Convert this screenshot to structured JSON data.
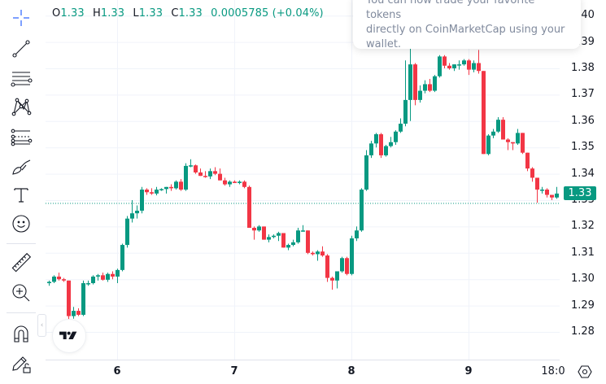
{
  "legend": {
    "open_label": "O",
    "open": "1.33",
    "high_label": "H",
    "high": "1.33",
    "low_label": "L",
    "low": "1.33",
    "close_label": "C",
    "close": "1.33",
    "change": "0.0005785 (+0.04%)"
  },
  "toast": {
    "line1": "You can now trade your favorite tokens",
    "line2": "directly on CoinMarketCap using your",
    "line3": "wallet."
  },
  "toolbar": {
    "items": [
      {
        "name": "crosshair-tool"
      },
      {
        "name": "trend-line-tool"
      },
      {
        "name": "horizontal-lines-tool"
      },
      {
        "name": "pattern-tool"
      },
      {
        "name": "fib-retracement-tool"
      },
      {
        "name": "brush-tool"
      },
      {
        "name": "text-tool"
      },
      {
        "name": "emoji-tool"
      },
      {
        "name": "ruler-tool"
      },
      {
        "name": "zoom-in-tool"
      },
      {
        "name": "magnet-tool"
      },
      {
        "name": "lock-drawings-tool"
      }
    ]
  },
  "price_axis": {
    "labels": [
      "1.40",
      "1.39",
      "1.38",
      "1.37",
      "1.36",
      "1.35",
      "1.34",
      "1.33",
      "1.32",
      "1.31",
      "1.30",
      "1.29",
      "1.28"
    ],
    "current_price": "1.33"
  },
  "time_axis": {
    "labels": [
      "6",
      "7",
      "8",
      "9",
      "18:0"
    ]
  },
  "colors": {
    "up": "#089981",
    "down": "#f23645",
    "grid": "#f0f3fa",
    "current_line": "#089981"
  },
  "chart_data": {
    "type": "candlestick",
    "title": "",
    "xlabel": "",
    "ylabel": "",
    "ylim": [
      1.274,
      1.403
    ],
    "x_ticks": [
      "6",
      "7",
      "8",
      "9",
      "18:0"
    ],
    "y_ticks": [
      1.28,
      1.29,
      1.3,
      1.31,
      1.32,
      1.33,
      1.34,
      1.35,
      1.36,
      1.37,
      1.38,
      1.39,
      1.4
    ],
    "current_price": 1.33,
    "candles": [
      {
        "o": 1.2985,
        "h": 1.2995,
        "l": 1.2975,
        "c": 1.299
      },
      {
        "o": 1.299,
        "h": 1.3015,
        "l": 1.2985,
        "c": 1.301
      },
      {
        "o": 1.301,
        "h": 1.3025,
        "l": 1.2995,
        "c": 1.3
      },
      {
        "o": 1.3,
        "h": 1.3005,
        "l": 1.299,
        "c": 1.2995
      },
      {
        "o": 1.2995,
        "h": 1.2995,
        "l": 1.283,
        "c": 1.286
      },
      {
        "o": 1.286,
        "h": 1.2895,
        "l": 1.285,
        "c": 1.288
      },
      {
        "o": 1.288,
        "h": 1.289,
        "l": 1.286,
        "c": 1.2865
      },
      {
        "o": 1.2865,
        "h": 1.2995,
        "l": 1.286,
        "c": 1.2985
      },
      {
        "o": 1.2985,
        "h": 1.2995,
        "l": 1.2975,
        "c": 1.2985
      },
      {
        "o": 1.2985,
        "h": 1.3015,
        "l": 1.298,
        "c": 1.301
      },
      {
        "o": 1.301,
        "h": 1.302,
        "l": 1.2995,
        "c": 1.3015
      },
      {
        "o": 1.3015,
        "h": 1.3025,
        "l": 1.2995,
        "c": 1.2998
      },
      {
        "o": 1.2998,
        "h": 1.3025,
        "l": 1.299,
        "c": 1.302
      },
      {
        "o": 1.302,
        "h": 1.303,
        "l": 1.3,
        "c": 1.301
      },
      {
        "o": 1.301,
        "h": 1.304,
        "l": 1.2985,
        "c": 1.3035
      },
      {
        "o": 1.3035,
        "h": 1.3135,
        "l": 1.303,
        "c": 1.313
      },
      {
        "o": 1.313,
        "h": 1.324,
        "l": 1.312,
        "c": 1.323
      },
      {
        "o": 1.323,
        "h": 1.33,
        "l": 1.3215,
        "c": 1.325
      },
      {
        "o": 1.325,
        "h": 1.328,
        "l": 1.323,
        "c": 1.326
      },
      {
        "o": 1.326,
        "h": 1.335,
        "l": 1.325,
        "c": 1.334
      },
      {
        "o": 1.334,
        "h": 1.3345,
        "l": 1.332,
        "c": 1.333
      },
      {
        "o": 1.333,
        "h": 1.3345,
        "l": 1.332,
        "c": 1.3325
      },
      {
        "o": 1.3325,
        "h": 1.335,
        "l": 1.3318,
        "c": 1.334
      },
      {
        "o": 1.334,
        "h": 1.3345,
        "l": 1.3335,
        "c": 1.3342
      },
      {
        "o": 1.3342,
        "h": 1.335,
        "l": 1.3325,
        "c": 1.335
      },
      {
        "o": 1.335,
        "h": 1.336,
        "l": 1.3335,
        "c": 1.3345
      },
      {
        "o": 1.3345,
        "h": 1.3375,
        "l": 1.334,
        "c": 1.337
      },
      {
        "o": 1.337,
        "h": 1.338,
        "l": 1.3335,
        "c": 1.334
      },
      {
        "o": 1.334,
        "h": 1.344,
        "l": 1.3335,
        "c": 1.343
      },
      {
        "o": 1.343,
        "h": 1.3455,
        "l": 1.3425,
        "c": 1.3432
      },
      {
        "o": 1.3432,
        "h": 1.3435,
        "l": 1.34,
        "c": 1.3405
      },
      {
        "o": 1.3405,
        "h": 1.342,
        "l": 1.3395,
        "c": 1.3392
      },
      {
        "o": 1.3392,
        "h": 1.341,
        "l": 1.3385,
        "c": 1.339
      },
      {
        "o": 1.339,
        "h": 1.342,
        "l": 1.338,
        "c": 1.341
      },
      {
        "o": 1.341,
        "h": 1.3425,
        "l": 1.3395,
        "c": 1.34
      },
      {
        "o": 1.34,
        "h": 1.342,
        "l": 1.338,
        "c": 1.3375
      },
      {
        "o": 1.3375,
        "h": 1.3385,
        "l": 1.3355,
        "c": 1.336
      },
      {
        "o": 1.336,
        "h": 1.3375,
        "l": 1.335,
        "c": 1.337
      },
      {
        "o": 1.337,
        "h": 1.3375,
        "l": 1.3365,
        "c": 1.3365
      },
      {
        "o": 1.3365,
        "h": 1.3375,
        "l": 1.336,
        "c": 1.337
      },
      {
        "o": 1.337,
        "h": 1.3375,
        "l": 1.3345,
        "c": 1.335
      },
      {
        "o": 1.335,
        "h": 1.3355,
        "l": 1.3215,
        "c": 1.3195
      },
      {
        "o": 1.3195,
        "h": 1.32,
        "l": 1.315,
        "c": 1.3185
      },
      {
        "o": 1.3185,
        "h": 1.3205,
        "l": 1.318,
        "c": 1.32
      },
      {
        "o": 1.32,
        "h": 1.32,
        "l": 1.3165,
        "c": 1.315
      },
      {
        "o": 1.315,
        "h": 1.317,
        "l": 1.314,
        "c": 1.316
      },
      {
        "o": 1.316,
        "h": 1.317,
        "l": 1.3155,
        "c": 1.3165
      },
      {
        "o": 1.3165,
        "h": 1.318,
        "l": 1.3145,
        "c": 1.3175
      },
      {
        "o": 1.3175,
        "h": 1.3175,
        "l": 1.3125,
        "c": 1.312
      },
      {
        "o": 1.312,
        "h": 1.3135,
        "l": 1.311,
        "c": 1.313
      },
      {
        "o": 1.313,
        "h": 1.315,
        "l": 1.3125,
        "c": 1.314
      },
      {
        "o": 1.314,
        "h": 1.3195,
        "l": 1.3135,
        "c": 1.3185
      },
      {
        "o": 1.3185,
        "h": 1.3205,
        "l": 1.318,
        "c": 1.3185
      },
      {
        "o": 1.3185,
        "h": 1.3185,
        "l": 1.3095,
        "c": 1.31
      },
      {
        "o": 1.31,
        "h": 1.3105,
        "l": 1.309,
        "c": 1.3095
      },
      {
        "o": 1.3095,
        "h": 1.311,
        "l": 1.307,
        "c": 1.3105
      },
      {
        "o": 1.3105,
        "h": 1.3125,
        "l": 1.3085,
        "c": 1.309
      },
      {
        "o": 1.309,
        "h": 1.3095,
        "l": 1.299,
        "c": 1.3005
      },
      {
        "o": 1.3005,
        "h": 1.301,
        "l": 1.296,
        "c": 1.2995
      },
      {
        "o": 1.2995,
        "h": 1.3025,
        "l": 1.2965,
        "c": 1.303
      },
      {
        "o": 1.303,
        "h": 1.3085,
        "l": 1.3025,
        "c": 1.308
      },
      {
        "o": 1.308,
        "h": 1.3085,
        "l": 1.3015,
        "c": 1.302
      },
      {
        "o": 1.302,
        "h": 1.3165,
        "l": 1.3015,
        "c": 1.3155
      },
      {
        "o": 1.3155,
        "h": 1.32,
        "l": 1.3145,
        "c": 1.3185
      },
      {
        "o": 1.3185,
        "h": 1.3345,
        "l": 1.318,
        "c": 1.334
      },
      {
        "o": 1.334,
        "h": 1.349,
        "l": 1.3335,
        "c": 1.347
      },
      {
        "o": 1.347,
        "h": 1.3525,
        "l": 1.346,
        "c": 1.3515
      },
      {
        "o": 1.3515,
        "h": 1.3555,
        "l": 1.35,
        "c": 1.355
      },
      {
        "o": 1.355,
        "h": 1.3555,
        "l": 1.346,
        "c": 1.347
      },
      {
        "o": 1.347,
        "h": 1.351,
        "l": 1.3465,
        "c": 1.3505
      },
      {
        "o": 1.3505,
        "h": 1.354,
        "l": 1.35,
        "c": 1.352
      },
      {
        "o": 1.352,
        "h": 1.3565,
        "l": 1.351,
        "c": 1.356
      },
      {
        "o": 1.356,
        "h": 1.361,
        "l": 1.3555,
        "c": 1.359
      },
      {
        "o": 1.359,
        "h": 1.383,
        "l": 1.358,
        "c": 1.368
      },
      {
        "o": 1.368,
        "h": 1.3875,
        "l": 1.36,
        "c": 1.3815
      },
      {
        "o": 1.3815,
        "h": 1.382,
        "l": 1.366,
        "c": 1.368
      },
      {
        "o": 1.368,
        "h": 1.3735,
        "l": 1.367,
        "c": 1.3715
      },
      {
        "o": 1.3715,
        "h": 1.3755,
        "l": 1.3705,
        "c": 1.374
      },
      {
        "o": 1.374,
        "h": 1.376,
        "l": 1.371,
        "c": 1.3715
      },
      {
        "o": 1.3715,
        "h": 1.3775,
        "l": 1.371,
        "c": 1.377
      },
      {
        "o": 1.377,
        "h": 1.385,
        "l": 1.3765,
        "c": 1.3845
      },
      {
        "o": 1.3845,
        "h": 1.385,
        "l": 1.38,
        "c": 1.381
      },
      {
        "o": 1.381,
        "h": 1.382,
        "l": 1.3795,
        "c": 1.38
      },
      {
        "o": 1.38,
        "h": 1.3815,
        "l": 1.379,
        "c": 1.3815
      },
      {
        "o": 1.3815,
        "h": 1.383,
        "l": 1.3795,
        "c": 1.3815
      },
      {
        "o": 1.3815,
        "h": 1.3835,
        "l": 1.381,
        "c": 1.383
      },
      {
        "o": 1.383,
        "h": 1.3835,
        "l": 1.3775,
        "c": 1.3795
      },
      {
        "o": 1.3795,
        "h": 1.383,
        "l": 1.3785,
        "c": 1.382
      },
      {
        "o": 1.382,
        "h": 1.387,
        "l": 1.378,
        "c": 1.379
      },
      {
        "o": 1.379,
        "h": 1.379,
        "l": 1.3475,
        "c": 1.3475
      },
      {
        "o": 1.3475,
        "h": 1.355,
        "l": 1.347,
        "c": 1.3545
      },
      {
        "o": 1.3545,
        "h": 1.357,
        "l": 1.3535,
        "c": 1.356
      },
      {
        "o": 1.356,
        "h": 1.3615,
        "l": 1.3555,
        "c": 1.3605
      },
      {
        "o": 1.3605,
        "h": 1.3615,
        "l": 1.354,
        "c": 1.353
      },
      {
        "o": 1.353,
        "h": 1.3535,
        "l": 1.349,
        "c": 1.352
      },
      {
        "o": 1.352,
        "h": 1.35,
        "l": 1.349,
        "c": 1.3515
      },
      {
        "o": 1.3515,
        "h": 1.357,
        "l": 1.351,
        "c": 1.3555
      },
      {
        "o": 1.3555,
        "h": 1.3555,
        "l": 1.3475,
        "c": 1.348
      },
      {
        "o": 1.348,
        "h": 1.348,
        "l": 1.341,
        "c": 1.342
      },
      {
        "o": 1.342,
        "h": 1.3425,
        "l": 1.337,
        "c": 1.3385
      },
      {
        "o": 1.3385,
        "h": 1.3385,
        "l": 1.329,
        "c": 1.334
      },
      {
        "o": 1.334,
        "h": 1.335,
        "l": 1.3325,
        "c": 1.334
      },
      {
        "o": 1.334,
        "h": 1.3345,
        "l": 1.331,
        "c": 1.332
      },
      {
        "o": 1.332,
        "h": 1.332,
        "l": 1.33,
        "c": 1.331
      },
      {
        "o": 1.331,
        "h": 1.335,
        "l": 1.3305,
        "c": 1.3325
      },
      {
        "o": 1.3325,
        "h": 1.335,
        "l": 1.328,
        "c": 1.3325
      },
      {
        "o": 1.3325,
        "h": 1.3335,
        "l": 1.332,
        "c": 1.333
      }
    ]
  }
}
